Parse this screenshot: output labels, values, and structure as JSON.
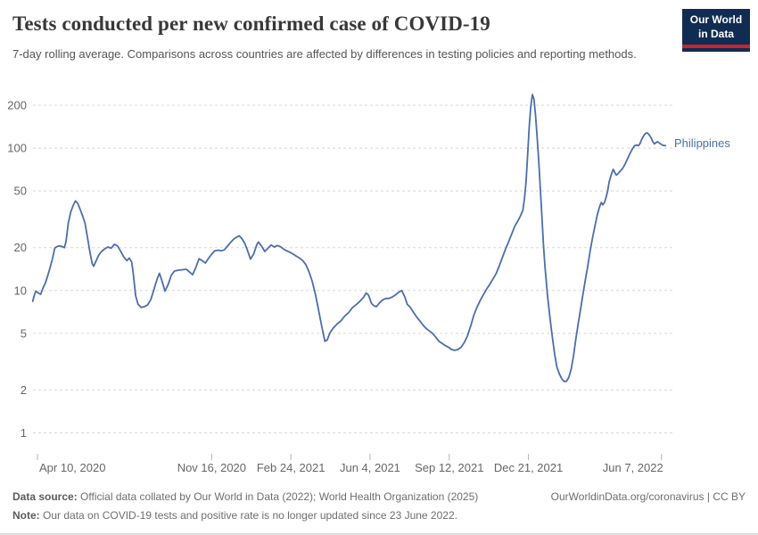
{
  "header": {
    "title": "Tests conducted per new confirmed case of COVID-19",
    "subtitle": "7-day rolling average. Comparisons across countries are affected by differences in testing policies and reporting methods."
  },
  "logo": {
    "line1": "Our World",
    "line2": "in Data",
    "bg_color": "#102C52",
    "bar_color": "#C7252B"
  },
  "series_label": "Philippines",
  "footer": {
    "datasource_label": "Data source:",
    "datasource_text": " Official data collated by Our World in Data (2022); World Health Organization (2025)",
    "link": "OurWorldinData.org/coronavirus",
    "license": " | CC BY",
    "note_label": "Note:",
    "note_text": " Our data on COVID-19 tests and positive rate is no longer updated since 23 June 2022."
  },
  "chart_data": {
    "type": "line",
    "title": "Tests conducted per new confirmed case of COVID-19",
    "xlabel": "",
    "ylabel": "",
    "y_scale": "log",
    "grid": "dashed-horizontal",
    "ylim": [
      1,
      250
    ],
    "y_ticks": [
      1,
      2,
      5,
      10,
      20,
      50,
      100,
      200
    ],
    "x_range": [
      "2020-04-04",
      "2022-06-12"
    ],
    "x_ticks": [
      {
        "label": "Apr 10, 2020",
        "date": "2020-04-10",
        "align": "start"
      },
      {
        "label": "Nov 16, 2020",
        "date": "2020-11-16",
        "align": "middle"
      },
      {
        "label": "Feb 24, 2021",
        "date": "2021-02-24",
        "align": "middle"
      },
      {
        "label": "Jun 4, 2021",
        "date": "2021-06-04",
        "align": "middle"
      },
      {
        "label": "Sep 12, 2021",
        "date": "2021-09-12",
        "align": "middle"
      },
      {
        "label": "Dec 21, 2021",
        "date": "2021-12-21",
        "align": "middle"
      },
      {
        "label": "Jun 7, 2022",
        "date": "2022-06-07",
        "align": "end"
      }
    ],
    "legend_position": "end-of-line-label",
    "series": [
      {
        "name": "Philippines",
        "color": "#4C6EA9",
        "points": [
          [
            "2020-04-04",
            8.4
          ],
          [
            "2020-04-06",
            9.2
          ],
          [
            "2020-04-08",
            9.9
          ],
          [
            "2020-04-11",
            9.6
          ],
          [
            "2020-04-14",
            9.4
          ],
          [
            "2020-04-17",
            10.4
          ],
          [
            "2020-04-20",
            11.3
          ],
          [
            "2020-04-23",
            12.7
          ],
          [
            "2020-04-26",
            14.5
          ],
          [
            "2020-04-29",
            16.8
          ],
          [
            "2020-05-02",
            19.9
          ],
          [
            "2020-05-05",
            20.4
          ],
          [
            "2020-05-08",
            20.6
          ],
          [
            "2020-05-11",
            20.4
          ],
          [
            "2020-05-14",
            20.0
          ],
          [
            "2020-05-16",
            22.0
          ],
          [
            "2020-05-19",
            29.8
          ],
          [
            "2020-05-22",
            35.5
          ],
          [
            "2020-05-25",
            39.5
          ],
          [
            "2020-05-28",
            42.6
          ],
          [
            "2020-05-31",
            40.8
          ],
          [
            "2020-06-03",
            37.0
          ],
          [
            "2020-06-06",
            33.5
          ],
          [
            "2020-06-09",
            29.8
          ],
          [
            "2020-06-12",
            24.0
          ],
          [
            "2020-06-15",
            19.0
          ],
          [
            "2020-06-18",
            15.5
          ],
          [
            "2020-06-20",
            14.8
          ],
          [
            "2020-06-23",
            16.1
          ],
          [
            "2020-06-26",
            17.6
          ],
          [
            "2020-06-30",
            18.8
          ],
          [
            "2020-07-04",
            19.6
          ],
          [
            "2020-07-08",
            20.2
          ],
          [
            "2020-07-12",
            19.8
          ],
          [
            "2020-07-16",
            21.1
          ],
          [
            "2020-07-20",
            20.6
          ],
          [
            "2020-07-24",
            18.9
          ],
          [
            "2020-07-28",
            17.2
          ],
          [
            "2020-08-01",
            16.2
          ],
          [
            "2020-08-04",
            16.9
          ],
          [
            "2020-08-07",
            15.8
          ],
          [
            "2020-08-09",
            13.2
          ],
          [
            "2020-08-12",
            9.2
          ],
          [
            "2020-08-15",
            8.0
          ],
          [
            "2020-08-19",
            7.6
          ],
          [
            "2020-08-23",
            7.7
          ],
          [
            "2020-08-27",
            7.9
          ],
          [
            "2020-08-31",
            8.6
          ],
          [
            "2020-09-04",
            10.1
          ],
          [
            "2020-09-08",
            12.0
          ],
          [
            "2020-09-11",
            13.2
          ],
          [
            "2020-09-14",
            11.8
          ],
          [
            "2020-09-18",
            9.9
          ],
          [
            "2020-09-22",
            11.0
          ],
          [
            "2020-09-26",
            12.8
          ],
          [
            "2020-09-30",
            13.7
          ],
          [
            "2020-10-05",
            13.9
          ],
          [
            "2020-10-10",
            14.0
          ],
          [
            "2020-10-15",
            14.1
          ],
          [
            "2020-10-19",
            13.5
          ],
          [
            "2020-10-23",
            12.9
          ],
          [
            "2020-10-27",
            14.5
          ],
          [
            "2020-10-31",
            16.7
          ],
          [
            "2020-11-04",
            16.2
          ],
          [
            "2020-11-08",
            15.6
          ],
          [
            "2020-11-12",
            16.8
          ],
          [
            "2020-11-16",
            18.0
          ],
          [
            "2020-11-20",
            19.0
          ],
          [
            "2020-11-24",
            19.2
          ],
          [
            "2020-11-28",
            19.0
          ],
          [
            "2020-12-02",
            19.3
          ],
          [
            "2020-12-06",
            20.5
          ],
          [
            "2020-12-10",
            21.8
          ],
          [
            "2020-12-14",
            23.0
          ],
          [
            "2020-12-18",
            23.8
          ],
          [
            "2020-12-21",
            24.2
          ],
          [
            "2020-12-24",
            23.2
          ],
          [
            "2020-12-28",
            21.3
          ],
          [
            "2020-12-31",
            19.3
          ],
          [
            "2021-01-04",
            16.6
          ],
          [
            "2021-01-08",
            18.0
          ],
          [
            "2021-01-12",
            21.0
          ],
          [
            "2021-01-14",
            21.9
          ],
          [
            "2021-01-18",
            20.5
          ],
          [
            "2021-01-22",
            18.8
          ],
          [
            "2021-01-26",
            19.8
          ],
          [
            "2021-01-30",
            20.9
          ],
          [
            "2021-02-03",
            20.2
          ],
          [
            "2021-02-07",
            20.7
          ],
          [
            "2021-02-11",
            20.3
          ],
          [
            "2021-02-15",
            19.5
          ],
          [
            "2021-02-19",
            19.0
          ],
          [
            "2021-02-23",
            18.5
          ],
          [
            "2021-02-27",
            18.0
          ],
          [
            "2021-03-03",
            17.4
          ],
          [
            "2021-03-07",
            16.9
          ],
          [
            "2021-03-11",
            16.2
          ],
          [
            "2021-03-15",
            15.2
          ],
          [
            "2021-03-19",
            13.5
          ],
          [
            "2021-03-23",
            11.6
          ],
          [
            "2021-03-27",
            9.4
          ],
          [
            "2021-03-31",
            7.3
          ],
          [
            "2021-04-04",
            5.6
          ],
          [
            "2021-04-08",
            4.4
          ],
          [
            "2021-04-11",
            4.5
          ],
          [
            "2021-04-14",
            5.0
          ],
          [
            "2021-04-18",
            5.4
          ],
          [
            "2021-04-23",
            5.8
          ],
          [
            "2021-04-28",
            6.1
          ],
          [
            "2021-05-03",
            6.6
          ],
          [
            "2021-05-08",
            7.0
          ],
          [
            "2021-05-13",
            7.6
          ],
          [
            "2021-05-18",
            8.0
          ],
          [
            "2021-05-23",
            8.5
          ],
          [
            "2021-05-27",
            9.0
          ],
          [
            "2021-05-30",
            9.6
          ],
          [
            "2021-06-02",
            9.3
          ],
          [
            "2021-06-06",
            8.1
          ],
          [
            "2021-06-09",
            7.8
          ],
          [
            "2021-06-12",
            7.7
          ],
          [
            "2021-06-16",
            8.2
          ],
          [
            "2021-06-20",
            8.6
          ],
          [
            "2021-06-24",
            8.8
          ],
          [
            "2021-06-28",
            8.8
          ],
          [
            "2021-07-02",
            9.0
          ],
          [
            "2021-07-06",
            9.3
          ],
          [
            "2021-07-10",
            9.7
          ],
          [
            "2021-07-14",
            10.0
          ],
          [
            "2021-07-18",
            9.0
          ],
          [
            "2021-07-21",
            8.0
          ],
          [
            "2021-07-25",
            7.6
          ],
          [
            "2021-07-29",
            7.0
          ],
          [
            "2021-08-02",
            6.5
          ],
          [
            "2021-08-06",
            6.1
          ],
          [
            "2021-08-10",
            5.7
          ],
          [
            "2021-08-14",
            5.4
          ],
          [
            "2021-08-18",
            5.2
          ],
          [
            "2021-08-22",
            5.0
          ],
          [
            "2021-08-26",
            4.7
          ],
          [
            "2021-08-30",
            4.4
          ],
          [
            "2021-09-03",
            4.25
          ],
          [
            "2021-09-07",
            4.1
          ],
          [
            "2021-09-11",
            4.0
          ],
          [
            "2021-09-15",
            3.85
          ],
          [
            "2021-09-19",
            3.8
          ],
          [
            "2021-09-23",
            3.85
          ],
          [
            "2021-09-27",
            4.0
          ],
          [
            "2021-10-01",
            4.3
          ],
          [
            "2021-10-05",
            4.8
          ],
          [
            "2021-10-09",
            5.6
          ],
          [
            "2021-10-13",
            6.7
          ],
          [
            "2021-10-17",
            7.6
          ],
          [
            "2021-10-21",
            8.5
          ],
          [
            "2021-10-25",
            9.3
          ],
          [
            "2021-10-29",
            10.2
          ],
          [
            "2021-11-02",
            11.0
          ],
          [
            "2021-11-06",
            12.0
          ],
          [
            "2021-11-10",
            13.1
          ],
          [
            "2021-11-14",
            14.8
          ],
          [
            "2021-11-18",
            17.0
          ],
          [
            "2021-11-22",
            19.5
          ],
          [
            "2021-11-26",
            22.0
          ],
          [
            "2021-11-30",
            25.0
          ],
          [
            "2021-12-04",
            28.5
          ],
          [
            "2021-12-08",
            31.0
          ],
          [
            "2021-12-11",
            33.5
          ],
          [
            "2021-12-14",
            36.5
          ],
          [
            "2021-12-16",
            44.0
          ],
          [
            "2021-12-18",
            58.0
          ],
          [
            "2021-12-20",
            90.0
          ],
          [
            "2021-12-22",
            140
          ],
          [
            "2021-12-24",
            195
          ],
          [
            "2021-12-26",
            238
          ],
          [
            "2021-12-28",
            220
          ],
          [
            "2021-12-30",
            168
          ],
          [
            "2022-01-01",
            120
          ],
          [
            "2022-01-03",
            82
          ],
          [
            "2022-01-05",
            52
          ],
          [
            "2022-01-07",
            33
          ],
          [
            "2022-01-09",
            21
          ],
          [
            "2022-01-11",
            14.5
          ],
          [
            "2022-01-14",
            9.3
          ],
          [
            "2022-01-17",
            6.6
          ],
          [
            "2022-01-20",
            4.8
          ],
          [
            "2022-01-23",
            3.6
          ],
          [
            "2022-01-26",
            2.9
          ],
          [
            "2022-01-29",
            2.6
          ],
          [
            "2022-02-01",
            2.4
          ],
          [
            "2022-02-04",
            2.3
          ],
          [
            "2022-02-07",
            2.3
          ],
          [
            "2022-02-10",
            2.45
          ],
          [
            "2022-02-13",
            2.8
          ],
          [
            "2022-02-16",
            3.5
          ],
          [
            "2022-02-19",
            4.6
          ],
          [
            "2022-02-22",
            5.9
          ],
          [
            "2022-02-25",
            7.5
          ],
          [
            "2022-02-28",
            9.5
          ],
          [
            "2022-03-03",
            12.0
          ],
          [
            "2022-03-06",
            15.0
          ],
          [
            "2022-03-09",
            19.0
          ],
          [
            "2022-03-12",
            23.5
          ],
          [
            "2022-03-15",
            28.5
          ],
          [
            "2022-03-18",
            34.0
          ],
          [
            "2022-03-21",
            39.0
          ],
          [
            "2022-03-23",
            41.5
          ],
          [
            "2022-03-25",
            40.0
          ],
          [
            "2022-03-27",
            41.5
          ],
          [
            "2022-03-29",
            45.0
          ],
          [
            "2022-03-31",
            50.0
          ],
          [
            "2022-04-02",
            58.0
          ],
          [
            "2022-04-05",
            66.0
          ],
          [
            "2022-04-07",
            71.0
          ],
          [
            "2022-04-09",
            67.5
          ],
          [
            "2022-04-11",
            64.5
          ],
          [
            "2022-04-13",
            66.0
          ],
          [
            "2022-04-16",
            69.0
          ],
          [
            "2022-04-19",
            72.0
          ],
          [
            "2022-04-22",
            77.0
          ],
          [
            "2022-04-25",
            84.0
          ],
          [
            "2022-04-28",
            91.0
          ],
          [
            "2022-05-01",
            98.0
          ],
          [
            "2022-05-04",
            104
          ],
          [
            "2022-05-07",
            105
          ],
          [
            "2022-05-09",
            104
          ],
          [
            "2022-05-11",
            108
          ],
          [
            "2022-05-13",
            115
          ],
          [
            "2022-05-16",
            123
          ],
          [
            "2022-05-18",
            127
          ],
          [
            "2022-05-20",
            128
          ],
          [
            "2022-05-22",
            125
          ],
          [
            "2022-05-25",
            118
          ],
          [
            "2022-05-27",
            111
          ],
          [
            "2022-05-29",
            107
          ],
          [
            "2022-05-31",
            109
          ],
          [
            "2022-06-02",
            111
          ],
          [
            "2022-06-05",
            108
          ],
          [
            "2022-06-08",
            105
          ],
          [
            "2022-06-12",
            104
          ]
        ]
      }
    ]
  }
}
